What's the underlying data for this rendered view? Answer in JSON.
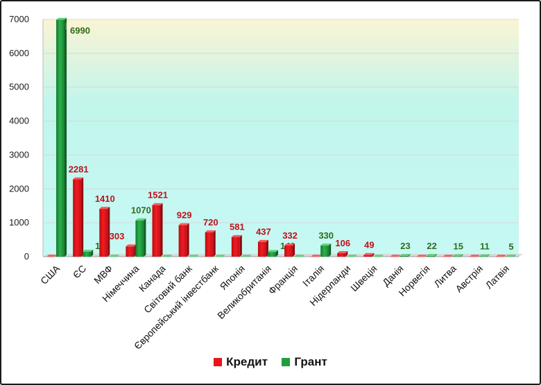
{
  "chart_data": {
    "type": "bar",
    "categories": [
      "США",
      "ЄС",
      "МВФ",
      "Німеччина",
      "Канада",
      "Світовий банк",
      "Європейський інвестбанк",
      "Японія",
      "Великобританія",
      "Франція",
      "Італія",
      "Нідерланди",
      "Швеція",
      "Данія",
      "Норвегія",
      "Литва",
      "Австрія",
      "Латвія"
    ],
    "series": [
      {
        "name": "Кредит",
        "color": "#e8141a",
        "label_color": "#c0101a",
        "values": [
          0,
          2281,
          1410,
          303,
          1521,
          929,
          720,
          581,
          437,
          332,
          0,
          106,
          49,
          0,
          0,
          0,
          0,
          0
        ]
      },
      {
        "name": "Грант",
        "color": "#1f9e3e",
        "label_color": "#2f6b1a",
        "values": [
          6990,
          145,
          0,
          1070,
          0,
          0,
          0,
          0,
          140,
          0,
          330,
          0,
          0,
          23,
          22,
          15,
          11,
          5
        ]
      }
    ],
    "ylim": [
      0,
      7000
    ],
    "yticks": [
      0,
      1000,
      2000,
      3000,
      4000,
      5000,
      6000,
      7000
    ],
    "grid": true,
    "legend_position": "bottom-center",
    "title": "",
    "xlabel": "",
    "ylabel": ""
  }
}
